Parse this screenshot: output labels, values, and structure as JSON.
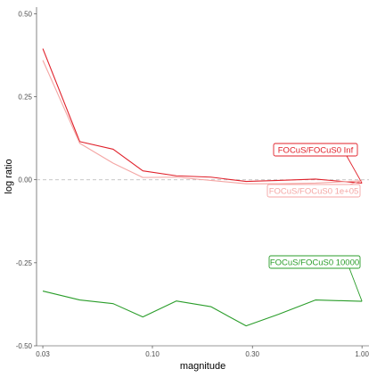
{
  "chart_data": {
    "type": "line",
    "xlabel": "magnitude",
    "ylabel": "log ratio",
    "x_scale": "log10",
    "xlim": [
      0.028,
      1.08
    ],
    "ylim": [
      -0.5,
      0.52
    ],
    "x_ticks": [
      {
        "value": 0.03,
        "label": "0.03"
      },
      {
        "value": 0.1,
        "label": "0.10"
      },
      {
        "value": 0.3,
        "label": "0.30"
      },
      {
        "value": 1.0,
        "label": "1.00"
      }
    ],
    "y_ticks": [
      {
        "value": 0.5,
        "label": "0.50"
      },
      {
        "value": 0.25,
        "label": "0.25"
      },
      {
        "value": 0.0,
        "label": "0.00"
      },
      {
        "value": -0.25,
        "label": "-0.25"
      },
      {
        "value": -0.5,
        "label": "-0.50"
      }
    ],
    "grid": false,
    "reference_line": {
      "y": 0,
      "style": "dashed",
      "color": "#b3b3b3"
    },
    "series": [
      {
        "name": "FOCuS/FOCuS0 Inf",
        "color": "#e0202a",
        "x": [
          0.03,
          0.045,
          0.065,
          0.09,
          0.13,
          0.19,
          0.28,
          0.4,
          0.6,
          1.0
        ],
        "y": [
          0.395,
          0.115,
          0.092,
          0.027,
          0.012,
          0.008,
          -0.005,
          -0.002,
          0.002,
          -0.01
        ]
      },
      {
        "name": "FOCuS/FOCuS0 1e+05",
        "color": "#f4a6a4",
        "x": [
          0.03,
          0.045,
          0.065,
          0.09,
          0.13,
          0.19,
          0.28,
          0.4,
          0.6,
          1.0
        ],
        "y": [
          0.36,
          0.11,
          0.05,
          0.007,
          0.008,
          -0.002,
          -0.012,
          -0.012,
          -0.01,
          -0.003
        ]
      },
      {
        "name": "FOCuS/FOCuS0 10000",
        "color": "#2a9d2a",
        "x": [
          0.03,
          0.045,
          0.065,
          0.09,
          0.13,
          0.19,
          0.28,
          0.4,
          0.6,
          1.0
        ],
        "y": [
          -0.335,
          -0.362,
          -0.373,
          -0.413,
          -0.365,
          -0.382,
          -0.44,
          -0.405,
          -0.362,
          -0.366
        ]
      }
    ],
    "annotations": [
      {
        "text": "FOCuS/FOCuS0 Inf",
        "series": 0
      },
      {
        "text": "FOCuS/FOCuS0 1e+05",
        "series": 1
      },
      {
        "text": "FOCuS/FOCuS0 10000",
        "series": 2
      }
    ]
  }
}
